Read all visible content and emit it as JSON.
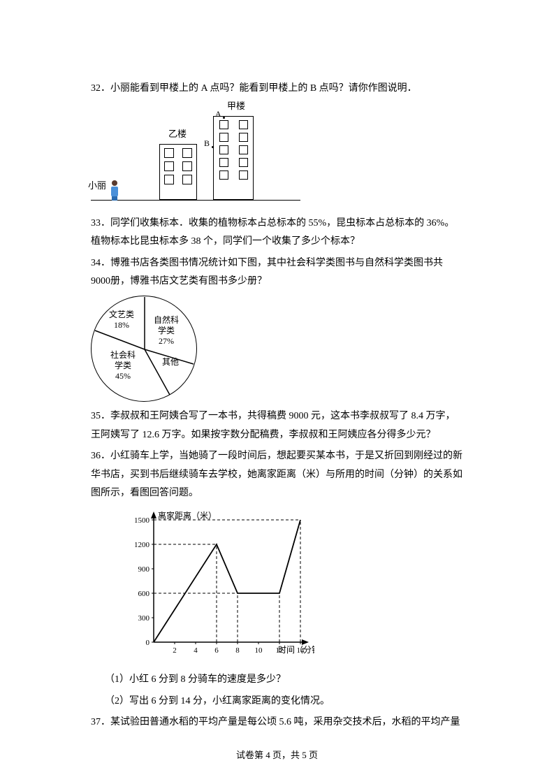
{
  "questions": {
    "q32": "32．小丽能看到甲楼上的 A 点吗？能看到甲楼上的 B 点吗？请你作图说明．",
    "q33": "33．同学们收集标本．收集的植物标本占总标本的 55%，昆虫标本占总标本的 36%。植物标本比昆虫标本多 38 个，同学们一个收集了多少个标本？",
    "q34a": "34．博雅书店各类图书情况统计如下图，其中社会科学类图书与自然科学类图书共 9000册，博雅书店文艺类有图书多少册？",
    "q35": "35．李叔叔和王阿姨合写了一本书，共得稿费 9000 元，这本书李叔叔写了 8.4 万字，王阿姨写了 12.6 万字。如果按字数分配稿费，李叔叔和王阿姨应各分得多少元？",
    "q36a": "36．小红骑车上学，当她骑了一段时间后，想起要买某本书，于是又折回到刚经过的新华书店，买到书后继续骑车去学校，她离家距离（米）与所用的时间（分钟）的关系如图所示，看图回答问题。",
    "q36s1": "（1）小红 6 分到 8 分骑车的速度是多少？",
    "q36s2": "（2）写出 6 分到 14 分，小红离家距离的变化情况。",
    "q37": "37．某试验田普通水稻的平均产量是每公顷 5.6 吨，采用杂交技术后，水稻的平均产量"
  },
  "building": {
    "girl_label": "小丽",
    "yi_label": "乙楼",
    "jia_label": "甲楼",
    "pointA": "A",
    "pointB": "B"
  },
  "pie": {
    "slices": [
      {
        "key": "art",
        "label": "文艺类\n18%",
        "pct": 18,
        "color": "#ffffff"
      },
      {
        "key": "sci",
        "label": "自然科\n学类\n27%",
        "pct": 27,
        "color": "#ffffff"
      },
      {
        "key": "other",
        "label": "其他",
        "pct": 10,
        "color": "#ffffff"
      },
      {
        "key": "soc",
        "label": "社会科\n学类\n45%",
        "pct": 45,
        "color": "#ffffff"
      }
    ],
    "border_color": "#000000"
  },
  "linechart": {
    "y_label": "离家距离（米）",
    "x_label": "时间（分钟）",
    "y_ticks": [
      0,
      300,
      600,
      900,
      1200,
      1500
    ],
    "x_ticks": [
      2,
      4,
      6,
      8,
      10,
      12,
      14
    ],
    "points": [
      [
        0,
        0
      ],
      [
        6,
        1200
      ],
      [
        8,
        600
      ],
      [
        12,
        600
      ],
      [
        14,
        1500
      ]
    ],
    "dash_guides": [
      {
        "from": [
          0,
          1500
        ],
        "to": [
          14,
          1500
        ]
      },
      {
        "from": [
          0,
          1200
        ],
        "to": [
          6,
          1200
        ]
      },
      {
        "from": [
          0,
          600
        ],
        "to": [
          8,
          600
        ]
      },
      {
        "from": [
          6,
          0
        ],
        "to": [
          6,
          1200
        ]
      },
      {
        "from": [
          8,
          0
        ],
        "to": [
          8,
          600
        ]
      },
      {
        "from": [
          12,
          0
        ],
        "to": [
          12,
          600
        ]
      },
      {
        "from": [
          14,
          0
        ],
        "to": [
          14,
          1500
        ]
      }
    ],
    "line_color": "#000000",
    "axis_color": "#000000"
  },
  "footer": {
    "text": "试卷第 4 页，共 5 页"
  }
}
